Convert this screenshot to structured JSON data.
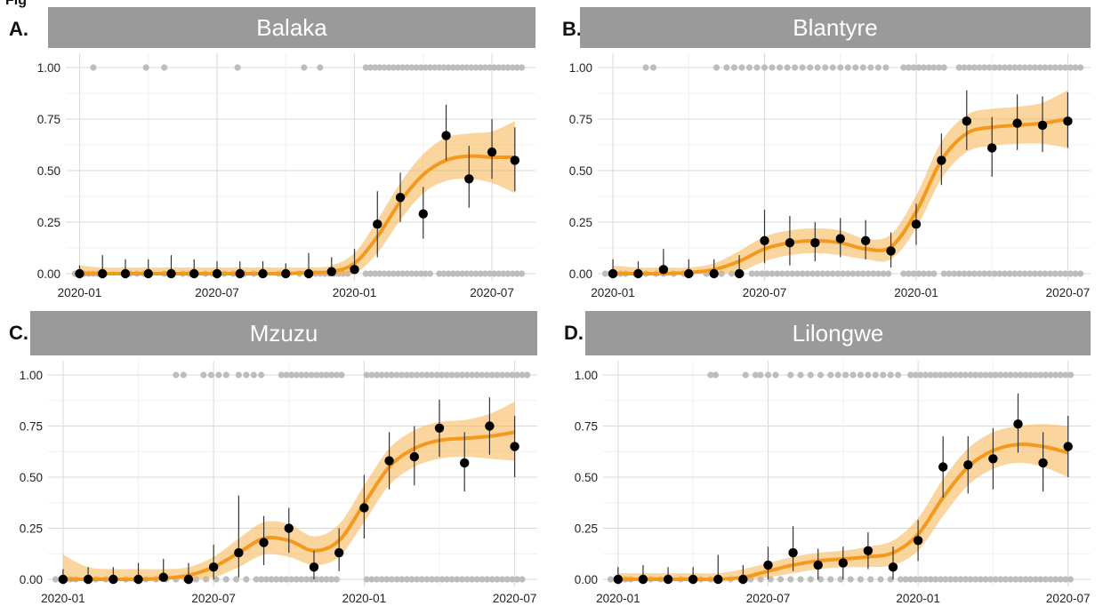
{
  "figure_label": "Fig",
  "colors": {
    "strip": "#9a9a9a",
    "ribbon": "#f7b24e",
    "line": "#f39a1e",
    "point": "#000000",
    "raw": "#bdbdbd"
  },
  "chart_data": [
    {
      "type": "scatter",
      "letter": "A.",
      "title": "Balaka",
      "xlabel": "",
      "ylabel": "",
      "ylim": [
        0,
        1
      ],
      "x_ticks": [
        "2020-01",
        "2020-07",
        "2020-01",
        "2020-07"
      ],
      "y_ticks": [
        "0.00",
        "0.25",
        "0.50",
        "0.75",
        "1.00"
      ],
      "grid": true,
      "series": [
        {
          "values": [
            0.0,
            0.0,
            0.0,
            0.0,
            0.0,
            0.0,
            0.0,
            0.0,
            0.0,
            0.0,
            0.0,
            0.01,
            0.02,
            0.24,
            0.37,
            0.29,
            0.67,
            0.46,
            0.59,
            0.55
          ],
          "lower": [
            0.0,
            0.0,
            0.0,
            0.0,
            0.0,
            0.0,
            0.0,
            0.0,
            0.0,
            0.0,
            0.0,
            0.0,
            0.0,
            0.08,
            0.25,
            0.17,
            0.55,
            0.32,
            0.46,
            0.4
          ],
          "upper": [
            0.04,
            0.09,
            0.07,
            0.07,
            0.09,
            0.07,
            0.06,
            0.06,
            0.06,
            0.05,
            0.1,
            0.08,
            0.12,
            0.4,
            0.49,
            0.42,
            0.82,
            0.62,
            0.75,
            0.71
          ]
        }
      ],
      "fit": {
        "mean": [
          0.0,
          0.0,
          0.0,
          0.0,
          0.0,
          0.0,
          0.0,
          0.0,
          0.0,
          0.0,
          0.005,
          0.01,
          0.05,
          0.18,
          0.35,
          0.48,
          0.55,
          0.57,
          0.565,
          0.565
        ],
        "lower": [
          0.0,
          0.0,
          0.0,
          0.0,
          0.0,
          0.0,
          0.0,
          0.0,
          0.0,
          0.0,
          0.0,
          0.0,
          0.0,
          0.1,
          0.26,
          0.39,
          0.45,
          0.46,
          0.44,
          0.39
        ],
        "upper": [
          0.04,
          0.03,
          0.03,
          0.03,
          0.03,
          0.03,
          0.03,
          0.03,
          0.03,
          0.03,
          0.03,
          0.04,
          0.1,
          0.26,
          0.44,
          0.58,
          0.66,
          0.68,
          0.69,
          0.74
        ]
      },
      "raw_top_x": [
        1.1,
        3.4,
        4.2,
        7.4,
        10.3,
        11.0,
        13.0,
        13.2,
        13.4,
        13.6,
        13.8,
        14.0,
        14.2,
        14.4,
        14.6,
        14.8,
        15.0,
        15.2,
        15.4,
        15.6,
        15.8,
        16.0,
        16.2,
        16.4,
        16.6,
        16.8,
        17.0,
        17.2,
        17.4,
        17.6,
        17.8,
        18.0,
        18.2,
        18.4,
        18.6,
        18.8,
        19.0,
        19.2,
        19.4,
        19.6,
        19.8
      ],
      "raw_bottom_x": [
        0.3,
        0.5,
        0.7,
        0.9,
        1.1,
        1.3,
        2.5,
        2.7,
        3.0,
        3.3,
        4.2,
        4.5,
        5.0,
        5.3,
        6.0,
        6.3,
        6.8,
        7.2,
        7.7,
        8.1,
        8.6,
        9.2,
        9.6,
        10.1,
        10.4,
        10.6,
        10.8,
        11.0,
        11.2,
        11.4,
        11.6,
        11.8,
        12.0,
        12.2,
        13.0,
        13.2,
        13.4,
        13.6,
        13.8,
        14.0,
        14.2,
        14.4,
        14.6,
        14.8,
        15.0,
        15.2,
        15.4,
        15.6,
        15.8,
        16.2,
        16.4,
        16.6,
        16.8,
        17.0,
        17.2,
        17.4,
        17.6,
        17.8,
        18.0,
        18.2,
        18.4,
        18.6,
        18.8,
        19.0,
        19.2,
        19.4,
        19.6,
        19.8
      ]
    },
    {
      "type": "scatter",
      "letter": "B.",
      "title": "Blantyre",
      "xlabel": "",
      "ylabel": "",
      "ylim": [
        0,
        1
      ],
      "x_ticks": [
        "2020-01",
        "2020-07",
        "2020-01",
        "2020-07"
      ],
      "y_ticks": [
        "0.00",
        "0.25",
        "0.50",
        "0.75",
        "1.00"
      ],
      "grid": true,
      "series": [
        {
          "values": [
            0.0,
            0.0,
            0.02,
            0.0,
            0.0,
            0.0,
            0.16,
            0.15,
            0.15,
            0.17,
            0.16,
            0.11,
            0.24,
            0.55,
            0.74,
            0.61,
            0.73,
            0.72,
            0.74
          ],
          "lower": [
            0.0,
            0.0,
            0.0,
            0.0,
            0.0,
            0.0,
            0.05,
            0.04,
            0.06,
            0.08,
            0.07,
            0.03,
            0.14,
            0.43,
            0.6,
            0.47,
            0.6,
            0.59,
            0.61
          ],
          "upper": [
            0.07,
            0.06,
            0.12,
            0.07,
            0.07,
            0.09,
            0.31,
            0.28,
            0.25,
            0.27,
            0.26,
            0.2,
            0.34,
            0.68,
            0.89,
            0.76,
            0.87,
            0.86,
            0.88
          ]
        }
      ],
      "fit": {
        "mean": [
          0.0,
          0.0,
          0.0,
          0.005,
          0.02,
          0.06,
          0.12,
          0.15,
          0.16,
          0.15,
          0.12,
          0.13,
          0.3,
          0.55,
          0.68,
          0.71,
          0.72,
          0.73,
          0.75
        ],
        "lower": [
          0.0,
          0.0,
          0.0,
          0.0,
          0.0,
          0.01,
          0.06,
          0.09,
          0.1,
          0.09,
          0.07,
          0.07,
          0.22,
          0.46,
          0.59,
          0.62,
          0.63,
          0.63,
          0.61
        ],
        "upper": [
          0.04,
          0.03,
          0.03,
          0.03,
          0.05,
          0.11,
          0.18,
          0.21,
          0.22,
          0.21,
          0.17,
          0.19,
          0.38,
          0.64,
          0.77,
          0.8,
          0.81,
          0.83,
          0.89
        ]
      },
      "raw_top_x": [
        1.8,
        2.1,
        4.6,
        5.0,
        5.3,
        5.6,
        5.9,
        6.2,
        6.5,
        6.8,
        7.1,
        7.4,
        7.7,
        8.0,
        8.3,
        8.6,
        8.9,
        9.2,
        9.5,
        9.8,
        10.1,
        10.4,
        10.7,
        11.0,
        11.3,
        12.0,
        12.2,
        12.4,
        12.6,
        12.8,
        13.0,
        13.2,
        13.4,
        13.6,
        14.2,
        14.4,
        14.6,
        14.8,
        15.0,
        15.2,
        15.4,
        15.6,
        15.8,
        16.0,
        16.2,
        16.4,
        16.6,
        16.8,
        17.0,
        17.2,
        17.4,
        17.6,
        17.8,
        18.0,
        18.2,
        18.4,
        18.6,
        18.8,
        19.0
      ],
      "raw_bottom_x": [
        0.2,
        0.4,
        0.6,
        0.8,
        1.0,
        1.4,
        1.8,
        2.2,
        2.5,
        2.9,
        3.3,
        3.6,
        4.2,
        4.5,
        4.8,
        5.2,
        5.6,
        6.0,
        6.2,
        6.4,
        6.6,
        6.8,
        7.0,
        7.2,
        7.4,
        7.6,
        7.8,
        8.0,
        8.2,
        8.4,
        8.6,
        8.8,
        9.0,
        9.2,
        9.4,
        9.6,
        9.8,
        10.0,
        10.2,
        10.4,
        10.6,
        10.8,
        11.0,
        11.2,
        11.4,
        12.0,
        12.2,
        12.4,
        12.6,
        12.8,
        13.0,
        13.2,
        13.6,
        13.8,
        14.0,
        14.2,
        14.4,
        14.6,
        14.8,
        15.0,
        15.2,
        15.4,
        15.6,
        15.8,
        16.0,
        16.2,
        16.4,
        16.6,
        16.8,
        17.0,
        17.2,
        17.4,
        17.6,
        17.8,
        18.0,
        18.2,
        18.4,
        18.6,
        18.8,
        19.0
      ]
    },
    {
      "type": "scatter",
      "letter": "C.",
      "title": "Mzuzu",
      "xlabel": "",
      "ylabel": "",
      "ylim": [
        0,
        1
      ],
      "x_ticks": [
        "2020-01",
        "2020-07",
        "2020-01",
        "2020-07"
      ],
      "y_ticks": [
        "0.00",
        "0.25",
        "0.50",
        "0.75",
        "1.00"
      ],
      "grid": true,
      "series": [
        {
          "values": [
            0.0,
            0.0,
            0.0,
            0.0,
            0.01,
            0.0,
            0.06,
            0.13,
            0.18,
            0.25,
            0.06,
            0.13,
            0.35,
            0.58,
            0.6,
            0.74,
            0.57,
            0.75,
            0.65
          ],
          "lower": [
            0.0,
            0.0,
            0.0,
            0.0,
            0.0,
            0.0,
            0.0,
            0.01,
            0.07,
            0.13,
            0.0,
            0.04,
            0.2,
            0.44,
            0.46,
            0.6,
            0.43,
            0.61,
            0.5
          ],
          "upper": [
            0.05,
            0.06,
            0.06,
            0.08,
            0.1,
            0.08,
            0.17,
            0.41,
            0.31,
            0.35,
            0.14,
            0.25,
            0.51,
            0.72,
            0.75,
            0.88,
            0.72,
            0.89,
            0.8
          ]
        }
      ],
      "fit": {
        "mean": [
          0.0,
          0.0,
          0.0,
          0.0,
          0.005,
          0.02,
          0.06,
          0.13,
          0.2,
          0.19,
          0.14,
          0.19,
          0.37,
          0.55,
          0.64,
          0.68,
          0.69,
          0.7,
          0.72
        ],
        "lower": [
          0.0,
          0.0,
          0.0,
          0.0,
          0.0,
          0.0,
          0.01,
          0.06,
          0.12,
          0.11,
          0.07,
          0.11,
          0.28,
          0.46,
          0.55,
          0.59,
          0.6,
          0.59,
          0.58
        ],
        "upper": [
          0.12,
          0.06,
          0.05,
          0.05,
          0.05,
          0.06,
          0.11,
          0.2,
          0.28,
          0.27,
          0.21,
          0.27,
          0.46,
          0.64,
          0.73,
          0.77,
          0.78,
          0.81,
          0.87
        ]
      },
      "raw_top_x": [
        5.0,
        5.3,
        6.1,
        6.4,
        6.7,
        7.0,
        7.5,
        7.8,
        8.1,
        8.4,
        9.2,
        9.4,
        9.6,
        9.8,
        10.0,
        10.2,
        10.4,
        10.6,
        10.8,
        11.0,
        11.2,
        11.4,
        11.6,
        12.6,
        12.8,
        13.0,
        13.2,
        13.4,
        13.6,
        13.8,
        14.0,
        14.2,
        14.4,
        14.6,
        14.8,
        15.0,
        15.2,
        15.4,
        15.6,
        15.8,
        16.0,
        16.2,
        16.4,
        16.6,
        16.8,
        17.0,
        17.2,
        17.4,
        17.6,
        17.8,
        18.0,
        18.2,
        18.4,
        18.6,
        18.8,
        19.0
      ],
      "raw_bottom_x": [
        0.2,
        0.4,
        0.6,
        0.8,
        1.0,
        1.4,
        1.8,
        2.2,
        2.6,
        3.0,
        3.4,
        3.8,
        4.2,
        4.6,
        5.0,
        5.4,
        5.8,
        6.2,
        6.6,
        7.0,
        7.4,
        7.8,
        8.2,
        8.4,
        8.6,
        8.8,
        9.0,
        9.2,
        9.4,
        9.6,
        9.8,
        10.0,
        10.2,
        10.4,
        10.6,
        10.8,
        11.0,
        11.2,
        11.4,
        12.6,
        12.8,
        13.0,
        13.2,
        13.4,
        13.6,
        13.8,
        14.0,
        14.2,
        14.4,
        14.6,
        14.8,
        15.0,
        15.2,
        15.4,
        15.6,
        15.8,
        16.0,
        16.2,
        16.4,
        16.6,
        16.8,
        17.0,
        17.2,
        17.4,
        17.6,
        17.8,
        18.0,
        18.2,
        18.4,
        18.6,
        18.8
      ]
    },
    {
      "type": "scatter",
      "letter": "D.",
      "title": "Lilongwe",
      "xlabel": "",
      "ylabel": "",
      "ylim": [
        0,
        1
      ],
      "x_ticks": [
        "2020-01",
        "2020-07",
        "2020-01",
        "2020-07"
      ],
      "y_ticks": [
        "0.00",
        "0.25",
        "0.50",
        "0.75",
        "1.00"
      ],
      "grid": true,
      "series": [
        {
          "values": [
            0.0,
            0.0,
            0.0,
            0.0,
            0.0,
            0.0,
            0.07,
            0.13,
            0.07,
            0.08,
            0.14,
            0.06,
            0.19,
            0.55,
            0.56,
            0.59,
            0.76,
            0.57,
            0.65
          ],
          "lower": [
            0.0,
            0.0,
            0.0,
            0.0,
            0.0,
            0.0,
            0.0,
            0.04,
            0.0,
            0.0,
            0.05,
            0.0,
            0.09,
            0.4,
            0.42,
            0.44,
            0.62,
            0.43,
            0.5
          ],
          "upper": [
            0.06,
            0.07,
            0.06,
            0.06,
            0.12,
            0.07,
            0.16,
            0.26,
            0.15,
            0.16,
            0.23,
            0.16,
            0.29,
            0.7,
            0.7,
            0.74,
            0.91,
            0.72,
            0.8
          ]
        }
      ],
      "fit": {
        "mean": [
          0.0,
          0.0,
          0.0,
          0.0,
          0.0,
          0.01,
          0.04,
          0.07,
          0.09,
          0.1,
          0.11,
          0.13,
          0.22,
          0.4,
          0.55,
          0.63,
          0.66,
          0.65,
          0.62
        ],
        "lower": [
          0.0,
          0.0,
          0.0,
          0.0,
          0.0,
          0.0,
          0.01,
          0.03,
          0.05,
          0.06,
          0.06,
          0.07,
          0.14,
          0.31,
          0.46,
          0.54,
          0.57,
          0.55,
          0.5
        ],
        "upper": [
          0.03,
          0.03,
          0.03,
          0.03,
          0.03,
          0.05,
          0.08,
          0.11,
          0.13,
          0.14,
          0.16,
          0.19,
          0.3,
          0.49,
          0.64,
          0.72,
          0.75,
          0.76,
          0.75
        ]
      },
      "raw_top_x": [
        4.2,
        4.4,
        5.6,
        6.0,
        6.2,
        6.5,
        6.8,
        7.4,
        7.8,
        8.2,
        8.6,
        9.0,
        9.3,
        9.6,
        9.9,
        10.2,
        10.5,
        10.8,
        11.1,
        11.4,
        11.7,
        12.2,
        12.4,
        12.6,
        12.8,
        13.0,
        13.2,
        13.4,
        13.6,
        13.8,
        14.0,
        14.2,
        14.4,
        14.6,
        14.8,
        15.0,
        15.2,
        15.4,
        15.6,
        15.8,
        16.0,
        16.2,
        16.4,
        16.6,
        16.8,
        17.0,
        17.2,
        17.4,
        17.6,
        17.8,
        18.0,
        18.2,
        18.4,
        18.6
      ],
      "raw_bottom_x": [
        0.2,
        0.4,
        0.6,
        0.8,
        1.0,
        1.4,
        1.8,
        2.2,
        2.6,
        3.0,
        3.4,
        3.8,
        4.2,
        4.6,
        5.0,
        5.4,
        5.8,
        6.2,
        6.6,
        7.0,
        7.4,
        7.8,
        8.2,
        8.6,
        9.0,
        9.4,
        9.8,
        10.2,
        10.6,
        11.0,
        11.4,
        11.8,
        12.0,
        12.2,
        12.4,
        12.6,
        12.8,
        13.0,
        13.2,
        13.4,
        13.6,
        13.8,
        14.0,
        14.2,
        14.4,
        14.6,
        14.8,
        15.0,
        15.2,
        15.4,
        15.6,
        15.8,
        16.0,
        16.2,
        16.4,
        16.6,
        16.8,
        17.0,
        17.2,
        17.4,
        17.6,
        17.8,
        18.0,
        18.2,
        18.4,
        18.6
      ]
    }
  ]
}
